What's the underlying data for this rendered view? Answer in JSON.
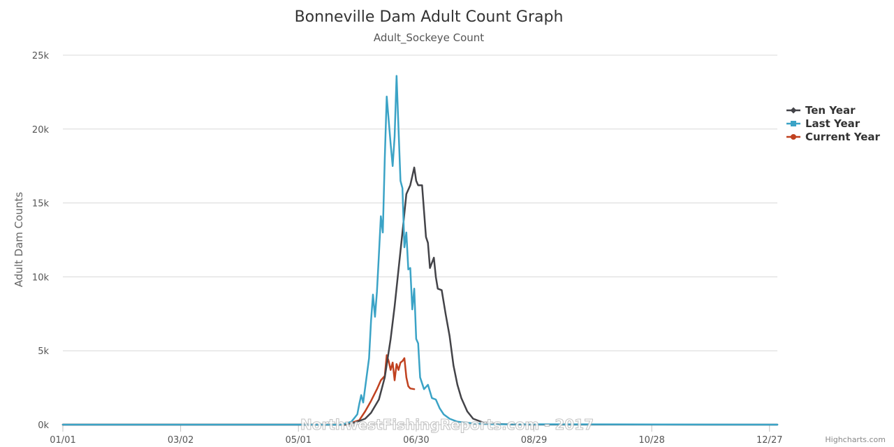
{
  "chart_data": {
    "type": "line",
    "title": "Bonneville Dam Adult Count Graph",
    "subtitle": "Adult_Sockeye Count",
    "ylabel": "Adult Dam Counts",
    "xlabel": "",
    "xlim": [
      1,
      365
    ],
    "ylim": [
      0,
      25000
    ],
    "x_ticks": [
      {
        "day": 1,
        "label": "01/01"
      },
      {
        "day": 61,
        "label": "03/02"
      },
      {
        "day": 121,
        "label": "05/01"
      },
      {
        "day": 181,
        "label": "06/30"
      },
      {
        "day": 241,
        "label": "08/29"
      },
      {
        "day": 301,
        "label": "10/28"
      },
      {
        "day": 361,
        "label": "12/27"
      }
    ],
    "y_ticks": [
      {
        "value": 0,
        "label": "0k"
      },
      {
        "value": 5000,
        "label": "5k"
      },
      {
        "value": 10000,
        "label": "10k"
      },
      {
        "value": 15000,
        "label": "15k"
      },
      {
        "value": 20000,
        "label": "20k"
      },
      {
        "value": 25000,
        "label": "25k"
      }
    ],
    "grid": true,
    "legend_position": "right",
    "series": [
      {
        "name": "Ten Year",
        "color": "#434348",
        "marker": "diamond",
        "points": [
          [
            1,
            0
          ],
          [
            145,
            0
          ],
          [
            150,
            150
          ],
          [
            155,
            400
          ],
          [
            158,
            800
          ],
          [
            162,
            1700
          ],
          [
            165,
            3200
          ],
          [
            168,
            5800
          ],
          [
            170,
            8000
          ],
          [
            172,
            10500
          ],
          [
            174,
            13000
          ],
          [
            176,
            15600
          ],
          [
            178,
            16200
          ],
          [
            180,
            17400
          ],
          [
            181,
            16500
          ],
          [
            182,
            16200
          ],
          [
            184,
            16200
          ],
          [
            186,
            12700
          ],
          [
            187,
            12300
          ],
          [
            188,
            10600
          ],
          [
            190,
            11300
          ],
          [
            191,
            10000
          ],
          [
            192,
            9200
          ],
          [
            194,
            9100
          ],
          [
            196,
            7500
          ],
          [
            198,
            6000
          ],
          [
            200,
            4000
          ],
          [
            202,
            2700
          ],
          [
            204,
            1800
          ],
          [
            207,
            900
          ],
          [
            210,
            400
          ],
          [
            215,
            150
          ],
          [
            220,
            50
          ],
          [
            230,
            10
          ],
          [
            365,
            0
          ]
        ]
      },
      {
        "name": "Last Year",
        "color": "#3ba3c6",
        "marker": "square",
        "points": [
          [
            1,
            0
          ],
          [
            143,
            0
          ],
          [
            148,
            200
          ],
          [
            151,
            700
          ],
          [
            152,
            1400
          ],
          [
            153,
            2000
          ],
          [
            154,
            1500
          ],
          [
            157,
            4500
          ],
          [
            158,
            7000
          ],
          [
            159,
            8800
          ],
          [
            160,
            7300
          ],
          [
            161,
            9000
          ],
          [
            162,
            11500
          ],
          [
            163,
            14100
          ],
          [
            164,
            13000
          ],
          [
            165,
            18000
          ],
          [
            166,
            22200
          ],
          [
            168,
            19000
          ],
          [
            169,
            17500
          ],
          [
            170,
            19500
          ],
          [
            171,
            23600
          ],
          [
            172,
            20000
          ],
          [
            173,
            16500
          ],
          [
            174,
            16000
          ],
          [
            175,
            12000
          ],
          [
            176,
            13000
          ],
          [
            177,
            10500
          ],
          [
            178,
            10600
          ],
          [
            179,
            7800
          ],
          [
            180,
            9200
          ],
          [
            181,
            5800
          ],
          [
            182,
            5500
          ],
          [
            183,
            3200
          ],
          [
            185,
            2400
          ],
          [
            187,
            2700
          ],
          [
            189,
            1800
          ],
          [
            191,
            1700
          ],
          [
            193,
            1100
          ],
          [
            195,
            700
          ],
          [
            198,
            400
          ],
          [
            202,
            200
          ],
          [
            210,
            80
          ],
          [
            220,
            30
          ],
          [
            365,
            0
          ]
        ]
      },
      {
        "name": "Current Year",
        "color": "#c0411f",
        "marker": "circle",
        "points": [
          [
            1,
            0
          ],
          [
            145,
            0
          ],
          [
            152,
            300
          ],
          [
            155,
            900
          ],
          [
            158,
            1600
          ],
          [
            161,
            2400
          ],
          [
            163,
            3000
          ],
          [
            165,
            3300
          ],
          [
            166,
            4700
          ],
          [
            167,
            4300
          ],
          [
            168,
            3700
          ],
          [
            169,
            4200
          ],
          [
            170,
            3000
          ],
          [
            171,
            4100
          ],
          [
            172,
            3700
          ],
          [
            173,
            4200
          ],
          [
            174,
            4300
          ],
          [
            175,
            4500
          ],
          [
            176,
            3200
          ],
          [
            177,
            2600
          ],
          [
            178,
            2450
          ],
          [
            180,
            2400
          ]
        ]
      }
    ]
  },
  "credit": "Highcharts.com",
  "watermark": "NorthwestFishingReports.com - 2017"
}
